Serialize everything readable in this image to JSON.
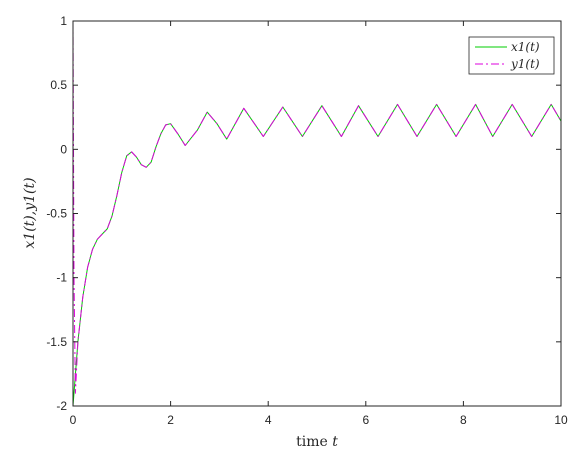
{
  "chart_data": {
    "type": "line",
    "xlabel": "time t",
    "xlabel_parts": {
      "word": "time",
      "var": "t"
    },
    "ylabel": "x1(t),y1(t)",
    "xlim": [
      0,
      10
    ],
    "ylim": [
      -2,
      1
    ],
    "x_ticks": [
      "0",
      "2",
      "4",
      "6",
      "8",
      "10"
    ],
    "y_ticks": [
      "-2",
      "-1.5",
      "-1",
      "-0.5",
      "0",
      "0.5",
      "1"
    ],
    "grid": false,
    "legend_position": "top-right",
    "series": [
      {
        "name": "x1(t)",
        "color": "#00cc00",
        "line_style": "solid",
        "x": [
          0,
          0.1,
          0.2,
          0.3,
          0.4,
          0.5,
          0.6,
          0.7,
          0.8,
          0.9,
          1.0,
          1.1,
          1.2,
          1.3,
          1.4,
          1.5,
          1.6,
          1.7,
          1.8,
          1.9,
          2.0,
          2.15,
          2.3,
          2.55,
          2.75,
          2.95,
          3.15,
          3.5,
          3.9,
          4.3,
          4.7,
          5.1,
          5.5,
          5.85,
          6.25,
          6.65,
          7.05,
          7.45,
          7.85,
          8.25,
          8.6,
          9.0,
          9.4,
          9.8,
          10.0
        ],
        "y": [
          -2.0,
          -1.5,
          -1.15,
          -0.92,
          -0.78,
          -0.7,
          -0.66,
          -0.62,
          -0.52,
          -0.36,
          -0.18,
          -0.05,
          -0.02,
          -0.06,
          -0.12,
          -0.14,
          -0.1,
          0.02,
          0.12,
          0.19,
          0.2,
          0.12,
          0.03,
          0.15,
          0.29,
          0.2,
          0.08,
          0.32,
          0.1,
          0.33,
          0.1,
          0.34,
          0.1,
          0.34,
          0.1,
          0.35,
          0.1,
          0.35,
          0.1,
          0.35,
          0.1,
          0.35,
          0.1,
          0.35,
          0.22
        ]
      },
      {
        "name": "y1(t)",
        "color": "#dd00dd",
        "line_style": "dash-dot",
        "x": [
          0,
          0.02,
          0.05,
          0.1,
          0.2,
          0.3,
          0.4,
          0.5,
          0.6,
          0.7,
          0.8,
          0.9,
          1.0,
          1.1,
          1.2,
          1.3,
          1.4,
          1.5,
          1.6,
          1.7,
          1.8,
          1.9,
          2.0,
          2.15,
          2.3,
          2.55,
          2.75,
          2.95,
          3.15,
          3.5,
          3.9,
          4.3,
          4.7,
          5.1,
          5.5,
          5.85,
          6.25,
          6.65,
          7.05,
          7.45,
          7.85,
          8.25,
          8.6,
          9.0,
          9.4,
          9.8,
          10.0
        ],
        "y": [
          1.0,
          -1.0,
          -1.9,
          -1.5,
          -1.15,
          -0.92,
          -0.78,
          -0.7,
          -0.66,
          -0.62,
          -0.52,
          -0.36,
          -0.18,
          -0.05,
          -0.02,
          -0.06,
          -0.12,
          -0.14,
          -0.1,
          0.02,
          0.12,
          0.19,
          0.2,
          0.12,
          0.03,
          0.15,
          0.29,
          0.2,
          0.08,
          0.32,
          0.1,
          0.33,
          0.1,
          0.34,
          0.1,
          0.34,
          0.1,
          0.35,
          0.1,
          0.35,
          0.1,
          0.35,
          0.1,
          0.35,
          0.1,
          0.35,
          0.22
        ]
      }
    ]
  }
}
